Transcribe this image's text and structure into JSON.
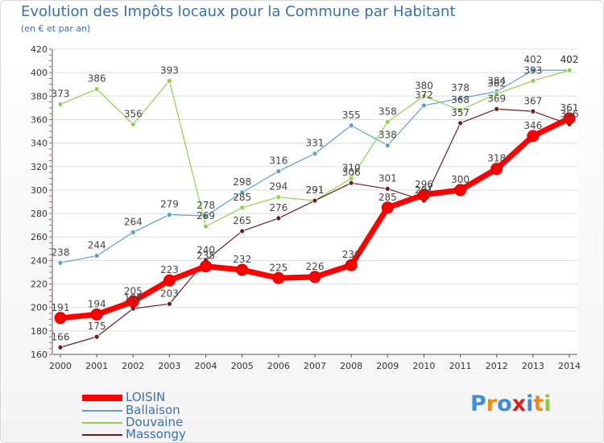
{
  "chart_data": {
    "type": "line",
    "title": "Evolution des Impôts locaux pour la Commune par Habitant",
    "subtitle": "(en € et par an)",
    "x": [
      "2000",
      "2001",
      "2002",
      "2003",
      "2004",
      "2005",
      "2006",
      "2007",
      "2008",
      "2009",
      "2010",
      "2011",
      "2012",
      "2013",
      "2014"
    ],
    "ylim": [
      160,
      420
    ],
    "yticks": [
      160,
      180,
      200,
      220,
      240,
      260,
      280,
      300,
      320,
      340,
      360,
      380,
      400,
      420
    ],
    "grid": "horizontal",
    "series": [
      {
        "name": "LOISIN",
        "color": "#ff0000",
        "values": [
          191,
          194,
          205,
          223,
          235,
          232,
          225,
          226,
          236,
          285,
          296,
          300,
          318,
          346,
          361
        ],
        "labels": [
          "191",
          "194",
          "205",
          "223",
          "235",
          "232",
          "225",
          "226",
          "236",
          "285",
          "296",
          "300",
          "318",
          "346",
          "361"
        ]
      },
      {
        "name": "Ballaison",
        "color": "#5f9ed0",
        "values": [
          238,
          244,
          264,
          279,
          278,
          298,
          316,
          331,
          355,
          338,
          372,
          378,
          384,
          402,
          402
        ],
        "labels": [
          "238",
          "244",
          "264",
          "279",
          "278",
          "298",
          "316",
          "331",
          "355",
          "338",
          "372",
          "378",
          "384",
          "402",
          "402"
        ]
      },
      {
        "name": "Douvaine",
        "color": "#8fd14f",
        "values": [
          373,
          386,
          356,
          393,
          269,
          285,
          294,
          291,
          310,
          358,
          380,
          368,
          382,
          393,
          402
        ],
        "labels": [
          "373",
          "386",
          "356",
          "393",
          "269",
          "285",
          "294",
          "291",
          "310",
          "358",
          "380",
          "368",
          "382",
          "393",
          "402"
        ]
      },
      {
        "name": "Massongy",
        "color": "#6b1f1f",
        "values": [
          166,
          175,
          199,
          203,
          240,
          265,
          276,
          291,
          306,
          301,
          291,
          357,
          369,
          367,
          356
        ],
        "labels": [
          "166",
          "175",
          "199",
          "203",
          "240",
          "265",
          "276",
          "291",
          "306",
          "301",
          "291",
          "357",
          "369",
          "367",
          "356"
        ]
      }
    ]
  },
  "logo": {
    "text": "Proxiti",
    "letters": [
      "P",
      "r",
      "o",
      "x",
      "i",
      "t",
      "i"
    ],
    "colors": [
      "#3d8fd6",
      "#f08a1c",
      "#3d8fd6",
      "#e02020",
      "#3d8fd6",
      "#f08a1c",
      "#8fc63f"
    ]
  }
}
